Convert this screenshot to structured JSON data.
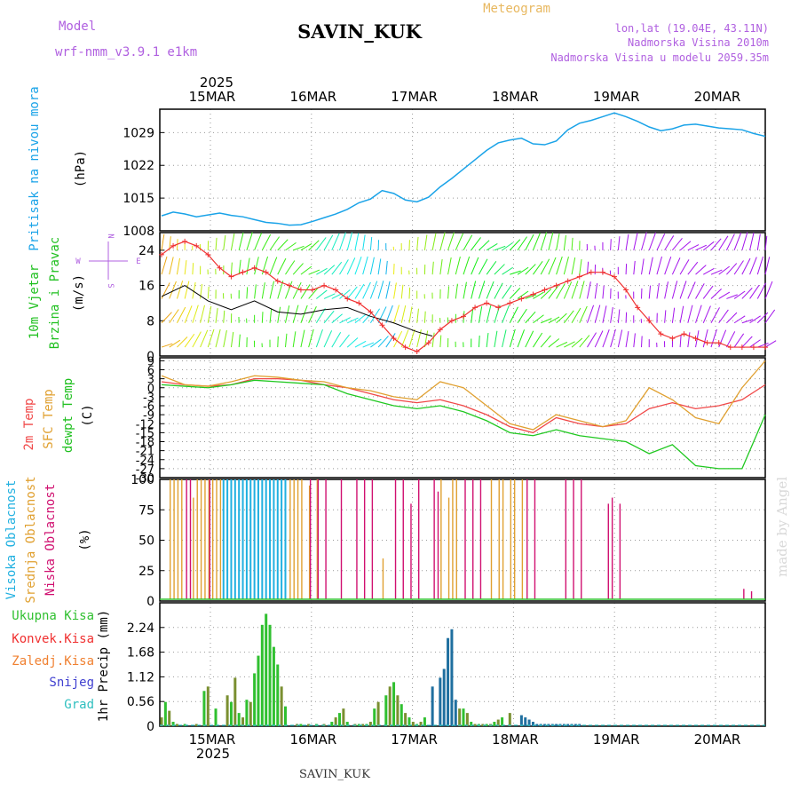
{
  "header": {
    "model_label": "Model",
    "model_name": "wrf-nmm_v3.9.1  e1km",
    "station": "SAVIN_KUK",
    "product": "Meteogram",
    "lonlat": "lon,lat (19.04E, 43.11N)",
    "elevation": "Nadmorska Visina 2010m",
    "model_elevation": "Nadmorska Visina u modelu 2059.35m"
  },
  "footer": {
    "station": "SAVIN_KUK",
    "watermark": "made by Angel"
  },
  "time_axis": {
    "year": "2025",
    "days": [
      "15MAR",
      "16MAR",
      "17MAR",
      "18MAR",
      "19MAR",
      "20MAR"
    ],
    "hours_total": 156
  },
  "colors": {
    "pressure": "#1aa3e8",
    "wind_speed": "#000000",
    "wind_gust": "#f03030",
    "t2m": "#f04848",
    "tsfc": "#e0a030",
    "tdew": "#20c820",
    "cloud_high": "#20b0e0",
    "cloud_mid": "#e0a030",
    "cloud_low": "#d01070",
    "precip_total": "#30c030",
    "precip_conv": "#f03030",
    "precip_frozen": "#f08030",
    "precip_snow": "#4040d0",
    "precip_graupel": "#30c0c0",
    "precip_dark": "#1f6f9f"
  },
  "chart_data": [
    {
      "type": "line",
      "title": "",
      "ylabel_lines": [
        "Pritisak na nivou mora",
        "(hPa)"
      ],
      "ylim": [
        1008,
        1034
      ],
      "yticks": [
        1008,
        1015,
        1022,
        1029
      ],
      "grid": true,
      "series": [
        {
          "name": "Pritisak na nivou mora",
          "x_hours": [
            0,
            3,
            6,
            9,
            12,
            15,
            18,
            21,
            24,
            27,
            30,
            33,
            36,
            39,
            42,
            45,
            48,
            51,
            54,
            57,
            60,
            63,
            66,
            69,
            72,
            75,
            78,
            81,
            84,
            87,
            90,
            93,
            96,
            99,
            102,
            105,
            108,
            111,
            114,
            117,
            120,
            123,
            126,
            129,
            132,
            135,
            138,
            141,
            144,
            147,
            150,
            153,
            156
          ],
          "values": [
            1011.2,
            1012,
            1011.6,
            1011,
            1011.4,
            1011.8,
            1011.3,
            1011,
            1010.4,
            1009.8,
            1009.6,
            1009.2,
            1009.3,
            1010,
            1010.8,
            1011.6,
            1012.6,
            1014,
            1014.8,
            1016.6,
            1016,
            1014.6,
            1014.2,
            1015.2,
            1017.4,
            1019.2,
            1021.2,
            1023.2,
            1025.2,
            1026.8,
            1027.4,
            1027.8,
            1026.6,
            1026.4,
            1027.2,
            1029.6,
            1031,
            1031.6,
            1032.4,
            1033.2,
            1032.4,
            1031.4,
            1030.2,
            1029.4,
            1029.8,
            1030.6,
            1030.8,
            1030.4,
            1030.0,
            1029.8,
            1029.6,
            1028.8,
            1028.2
          ]
        }
      ]
    },
    {
      "type": "line",
      "title": "",
      "ylabel_lines": [
        "10m Vjetar",
        "Brzina i Pravac",
        "(m/s)"
      ],
      "direction_key": [
        "N",
        "W",
        "E",
        "S"
      ],
      "ylim": [
        0,
        28
      ],
      "yticks": [
        0,
        8,
        16,
        24
      ],
      "grid": true,
      "series": [
        {
          "name": "speed",
          "x_hours": [
            0,
            6,
            12,
            18,
            24,
            30,
            36,
            42,
            48,
            54,
            60,
            66,
            70
          ],
          "values": [
            13.5,
            16,
            12.5,
            10.5,
            12.5,
            10,
            9.5,
            10.5,
            11,
            9,
            7.5,
            5.5,
            4.5
          ]
        },
        {
          "name": "gust",
          "x_hours": [
            0,
            3,
            6,
            9,
            12,
            15,
            18,
            21,
            24,
            27,
            30,
            33,
            36,
            39,
            42,
            45,
            48,
            51,
            54,
            57,
            60,
            63,
            66,
            69,
            72,
            75,
            78,
            81,
            84,
            87,
            90,
            93,
            96,
            99,
            102,
            105,
            108,
            111,
            114,
            117,
            120,
            123,
            126,
            129,
            132,
            135,
            138,
            141,
            144,
            147,
            150,
            153,
            156
          ],
          "values": [
            23,
            25,
            26,
            25,
            23,
            20,
            18,
            19,
            20,
            19,
            17,
            16,
            15,
            15,
            16,
            15,
            13,
            12,
            10,
            7,
            4,
            2,
            1,
            3,
            6,
            8,
            9,
            11,
            12,
            11,
            12,
            13,
            14,
            15,
            16,
            17,
            18,
            19,
            19,
            18,
            15,
            11,
            8,
            5,
            4,
            5,
            4,
            3,
            3,
            2,
            2,
            2,
            2
          ]
        }
      ]
    },
    {
      "type": "line",
      "title": "",
      "ylabel_lines": [
        "2m Temp",
        "SFC Temp",
        "dewpt Temp",
        "(C)"
      ],
      "ylim": [
        -30,
        10
      ],
      "yticks": [
        9,
        6,
        3,
        0,
        -3,
        -6,
        -9,
        -12,
        -15,
        -18,
        -21,
        -24,
        -27,
        -30
      ],
      "grid": true,
      "series": [
        {
          "name": "2m Temp",
          "x_hours": [
            0,
            6,
            12,
            18,
            24,
            30,
            36,
            42,
            48,
            54,
            60,
            66,
            72,
            78,
            84,
            90,
            96,
            102,
            108,
            114,
            120,
            126,
            132,
            138,
            144,
            150,
            156
          ],
          "values": [
            2,
            1,
            0.5,
            1,
            3,
            3,
            2.5,
            1,
            0,
            -2,
            -4,
            -5,
            -4,
            -6,
            -9,
            -13,
            -15,
            -10,
            -12,
            -13,
            -12,
            -7,
            -5,
            -7,
            -6,
            -4,
            1
          ]
        },
        {
          "name": "SFC Temp",
          "x_hours": [
            0,
            6,
            12,
            18,
            24,
            30,
            36,
            42,
            48,
            54,
            60,
            66,
            72,
            78,
            84,
            90,
            96,
            102,
            108,
            114,
            120,
            126,
            132,
            138,
            144,
            150,
            156
          ],
          "values": [
            4,
            1,
            0.5,
            2,
            4,
            3.5,
            2.5,
            2,
            0,
            -1,
            -3,
            -4,
            2,
            0,
            -6,
            -12,
            -14,
            -9,
            -11,
            -13,
            -11,
            0,
            -4,
            -10,
            -12,
            0,
            9
          ]
        },
        {
          "name": "dewpt Temp",
          "x_hours": [
            0,
            6,
            12,
            18,
            24,
            30,
            36,
            42,
            48,
            54,
            60,
            66,
            72,
            78,
            84,
            90,
            96,
            102,
            108,
            114,
            120,
            126,
            132,
            138,
            144,
            150,
            156
          ],
          "values": [
            1,
            0.5,
            0,
            1,
            2.5,
            2,
            1.5,
            1,
            -2,
            -4,
            -6,
            -7,
            -6,
            -8,
            -11,
            -15,
            -16,
            -14,
            -16,
            -17,
            -18,
            -22,
            -19,
            -26,
            -27,
            -27,
            -9
          ]
        }
      ]
    },
    {
      "type": "bar",
      "title": "",
      "ylabel_lines": [
        "Visoka Oblacnost",
        "Srednja Oblacnost",
        "Niska Oblacnost",
        "(%)"
      ],
      "ylim": [
        0,
        100
      ],
      "yticks": [
        0,
        25,
        50,
        75,
        100
      ],
      "grid": true,
      "series": [
        {
          "name": "Visoka Oblacnost",
          "x_hours": [
            16,
            17,
            18,
            19,
            20,
            21,
            22,
            23,
            24,
            25,
            26,
            27,
            28,
            29,
            30,
            31,
            32
          ],
          "values": [
            100,
            100,
            100,
            100,
            100,
            100,
            100,
            100,
            100,
            100,
            100,
            100,
            100,
            100,
            100,
            100,
            100
          ]
        },
        {
          "name": "Srednja Oblacnost",
          "x_hours": [
            2,
            3,
            4,
            5,
            8,
            9,
            10,
            11,
            12,
            13,
            14,
            15,
            33,
            34,
            35,
            36,
            38,
            40,
            57,
            72,
            74,
            75,
            76,
            85,
            87,
            88,
            90,
            91,
            93
          ],
          "values": [
            100,
            100,
            100,
            100,
            85,
            100,
            100,
            100,
            100,
            100,
            100,
            100,
            100,
            100,
            100,
            100,
            95,
            100,
            35,
            100,
            85,
            100,
            100,
            100,
            100,
            100,
            100,
            100,
            100
          ]
        },
        {
          "name": "Niska Oblacnost",
          "x_hours": [
            6,
            7,
            12,
            38,
            40,
            42,
            46,
            50,
            52,
            54,
            60,
            62,
            64,
            66,
            70,
            71,
            78,
            80,
            82,
            94,
            96,
            104,
            106,
            108,
            115,
            116,
            118,
            150,
            152
          ],
          "values": [
            100,
            100,
            100,
            100,
            100,
            100,
            100,
            100,
            100,
            100,
            100,
            100,
            80,
            100,
            100,
            90,
            100,
            100,
            100,
            100,
            100,
            100,
            100,
            100,
            80,
            85,
            80,
            10,
            8
          ]
        }
      ]
    },
    {
      "type": "bar",
      "title": "",
      "ylabel_lines": [
        "1hr Precip (mm)"
      ],
      "legend": [
        "Ukupna Kisa",
        "Konvek.Kisa",
        "Zaledj.Kisa",
        "Snijeg",
        "Grad"
      ],
      "ylim": [
        0,
        2.8
      ],
      "yticks": [
        0,
        0.56,
        1.12,
        1.68,
        2.24
      ],
      "grid": true,
      "series": [
        {
          "name": "Ukupna Kisa",
          "x_hours": [
            0,
            1,
            2,
            3,
            4,
            6,
            9,
            11,
            12,
            14,
            17,
            18,
            19,
            20,
            21,
            22,
            23,
            24,
            25,
            26,
            27,
            28,
            29,
            30,
            31,
            32,
            35,
            36,
            38,
            40,
            42,
            44,
            45,
            46,
            47,
            48,
            50,
            51,
            52,
            53,
            54,
            55,
            56,
            58,
            59,
            60,
            61,
            62,
            63,
            64,
            65,
            66,
            67,
            68,
            70,
            72,
            73,
            74,
            75,
            76,
            77,
            78,
            79,
            80,
            81,
            82,
            83,
            84,
            85,
            86,
            87,
            88,
            90,
            93,
            94,
            95,
            96,
            97,
            98,
            99,
            100,
            101,
            102,
            103,
            104,
            105,
            106,
            107,
            108
          ],
          "values": [
            0.2,
            0.55,
            0.35,
            0.1,
            0.05,
            0.05,
            0.05,
            0.8,
            0.9,
            0.4,
            0.7,
            0.55,
            1.1,
            0.3,
            0.2,
            0.6,
            0.55,
            1.2,
            1.6,
            2.3,
            2.55,
            2.3,
            1.8,
            1.4,
            0.9,
            0.45,
            0.05,
            0.05,
            0.05,
            0.05,
            0.05,
            0.1,
            0.2,
            0.3,
            0.4,
            0.1,
            0.05,
            0.05,
            0.05,
            0.05,
            0.1,
            0.4,
            0.55,
            0.7,
            0.9,
            1.0,
            0.7,
            0.5,
            0.3,
            0.2,
            0.1,
            0.05,
            0.1,
            0.2,
            0.9,
            1.1,
            1.3,
            2.0,
            2.2,
            0.6,
            0.4,
            0.4,
            0.3,
            0.1,
            0.05,
            0.05,
            0.05,
            0.05,
            0.05,
            0.1,
            0.15,
            0.2,
            0.3,
            0.25,
            0.2,
            0.15,
            0.1,
            0.05,
            0.05,
            0.05,
            0.05,
            0.05,
            0.05,
            0.05,
            0.05,
            0.05,
            0.05,
            0.05,
            0.05
          ]
        }
      ]
    }
  ]
}
